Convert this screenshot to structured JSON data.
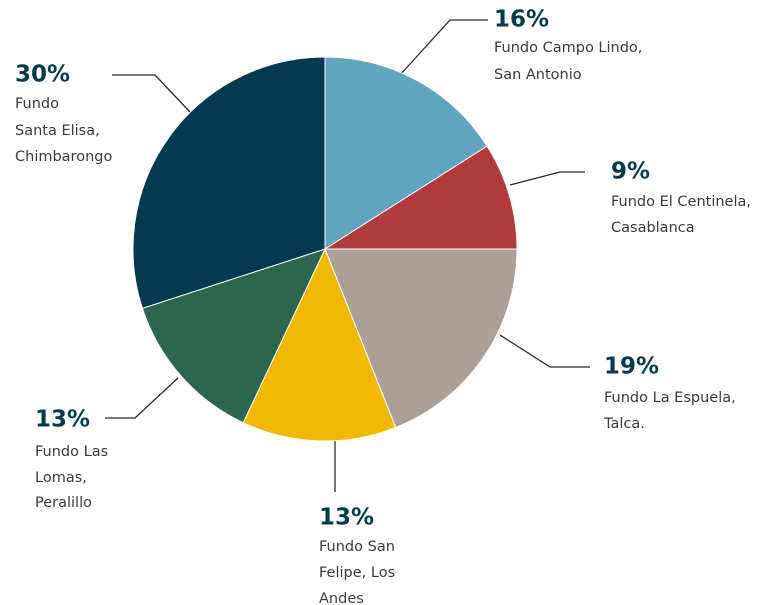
{
  "chart_data": {
    "type": "pie",
    "categories": [
      [
        "Fundo Campo Lindo,",
        "San Antonio"
      ],
      [
        "Fundo El Centinela,",
        "Casablanca"
      ],
      [
        "Fundo La Espuela,",
        "Talca."
      ],
      [
        "Fundo San",
        "Felipe, Los",
        "Andes"
      ],
      [
        "Fundo Las",
        "Lomas,",
        "Peralillo"
      ],
      [
        "Fundo",
        "Santa Elisa,",
        "Chimbarongo"
      ]
    ],
    "values": [
      16,
      9,
      19,
      13,
      13,
      30
    ],
    "value_labels": [
      "16%",
      "9%",
      "19%",
      "13%",
      "13%",
      "30%"
    ],
    "colors": [
      "#62a3bd",
      "#b03a3e",
      "#ac9f98",
      "#f0b800",
      "#2c6651",
      "#043a4f"
    ]
  }
}
